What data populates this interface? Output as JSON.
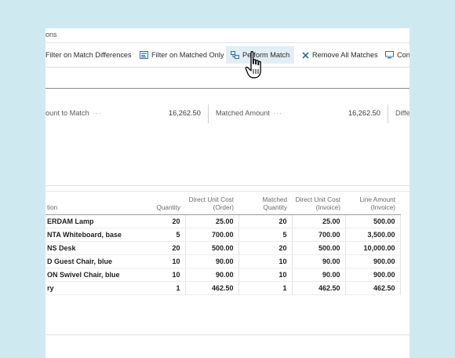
{
  "breadcrumb": "ons",
  "toolbar": {
    "filter_differences": "Filter on Match Differences",
    "filter_matched": "Filter on Matched Only",
    "perform_match": "Perform Match",
    "remove_matches": "Remove All Matches",
    "cont": "Cont"
  },
  "summary": {
    "amount_to_match_label": "ount to Match",
    "amount_to_match_value": "16,262.50",
    "matched_amount_label": "Matched Amount",
    "matched_amount_value": "16,262.50",
    "difference_label": "Diffe",
    "dots": "···"
  },
  "table": {
    "headers": [
      "tion",
      "Quantity",
      "Direct Unit Cost (Order)",
      "Matched Quantity",
      "Direct Unit Cost (Invoice)",
      "Line Amount (Invoice)"
    ],
    "rows": [
      [
        "ERDAM Lamp",
        "20",
        "25.00",
        "20",
        "25.00",
        "500.00"
      ],
      [
        "NTA Whiteboard, base",
        "5",
        "700.00",
        "5",
        "700.00",
        "3,500.00"
      ],
      [
        "NS Desk",
        "20",
        "500.00",
        "20",
        "500.00",
        "10,000.00"
      ],
      [
        "D Guest Chair, blue",
        "10",
        "90.00",
        "10",
        "90.00",
        "900.00"
      ],
      [
        "ON Swivel Chair, blue",
        "10",
        "90.00",
        "10",
        "90.00",
        "900.00"
      ],
      [
        "ry",
        "1",
        "462.50",
        "1",
        "462.50",
        "462.50"
      ]
    ]
  },
  "colors": {
    "background": "#cfe9f1",
    "highlight": "#e2eef6",
    "icon_blue": "#2f6fa8"
  }
}
